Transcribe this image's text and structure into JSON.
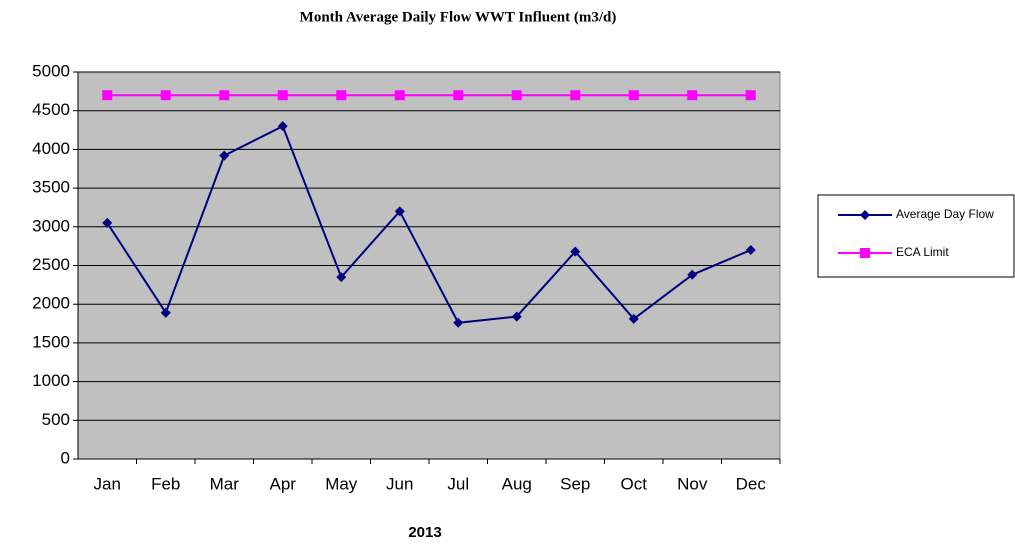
{
  "chart_data": {
    "type": "line",
    "title": "Month Average Daily Flow WWT Influent (m3/d)",
    "x_label": "2013",
    "categories": [
      "Jan",
      "Feb",
      "Mar",
      "Apr",
      "May",
      "Jun",
      "Jul",
      "Aug",
      "Sep",
      "Oct",
      "Nov",
      "Dec"
    ],
    "series": [
      {
        "name": "Average Day Flow",
        "color": "#000080",
        "marker": "diamond",
        "values": [
          3050,
          1890,
          3920,
          4300,
          2350,
          3200,
          1760,
          1840,
          2680,
          1810,
          2380,
          2700
        ]
      },
      {
        "name": "ECA Limit",
        "color": "#ff00ff",
        "marker": "square",
        "values": [
          4700,
          4700,
          4700,
          4700,
          4700,
          4700,
          4700,
          4700,
          4700,
          4700,
          4700,
          4700
        ]
      }
    ],
    "ylim": [
      0,
      5000
    ],
    "yticks": [
      0,
      500,
      1000,
      1500,
      2000,
      2500,
      3000,
      3500,
      4000,
      4500,
      5000
    ],
    "grid": true,
    "plot_background": "#c0c0c0",
    "legend": "right"
  }
}
